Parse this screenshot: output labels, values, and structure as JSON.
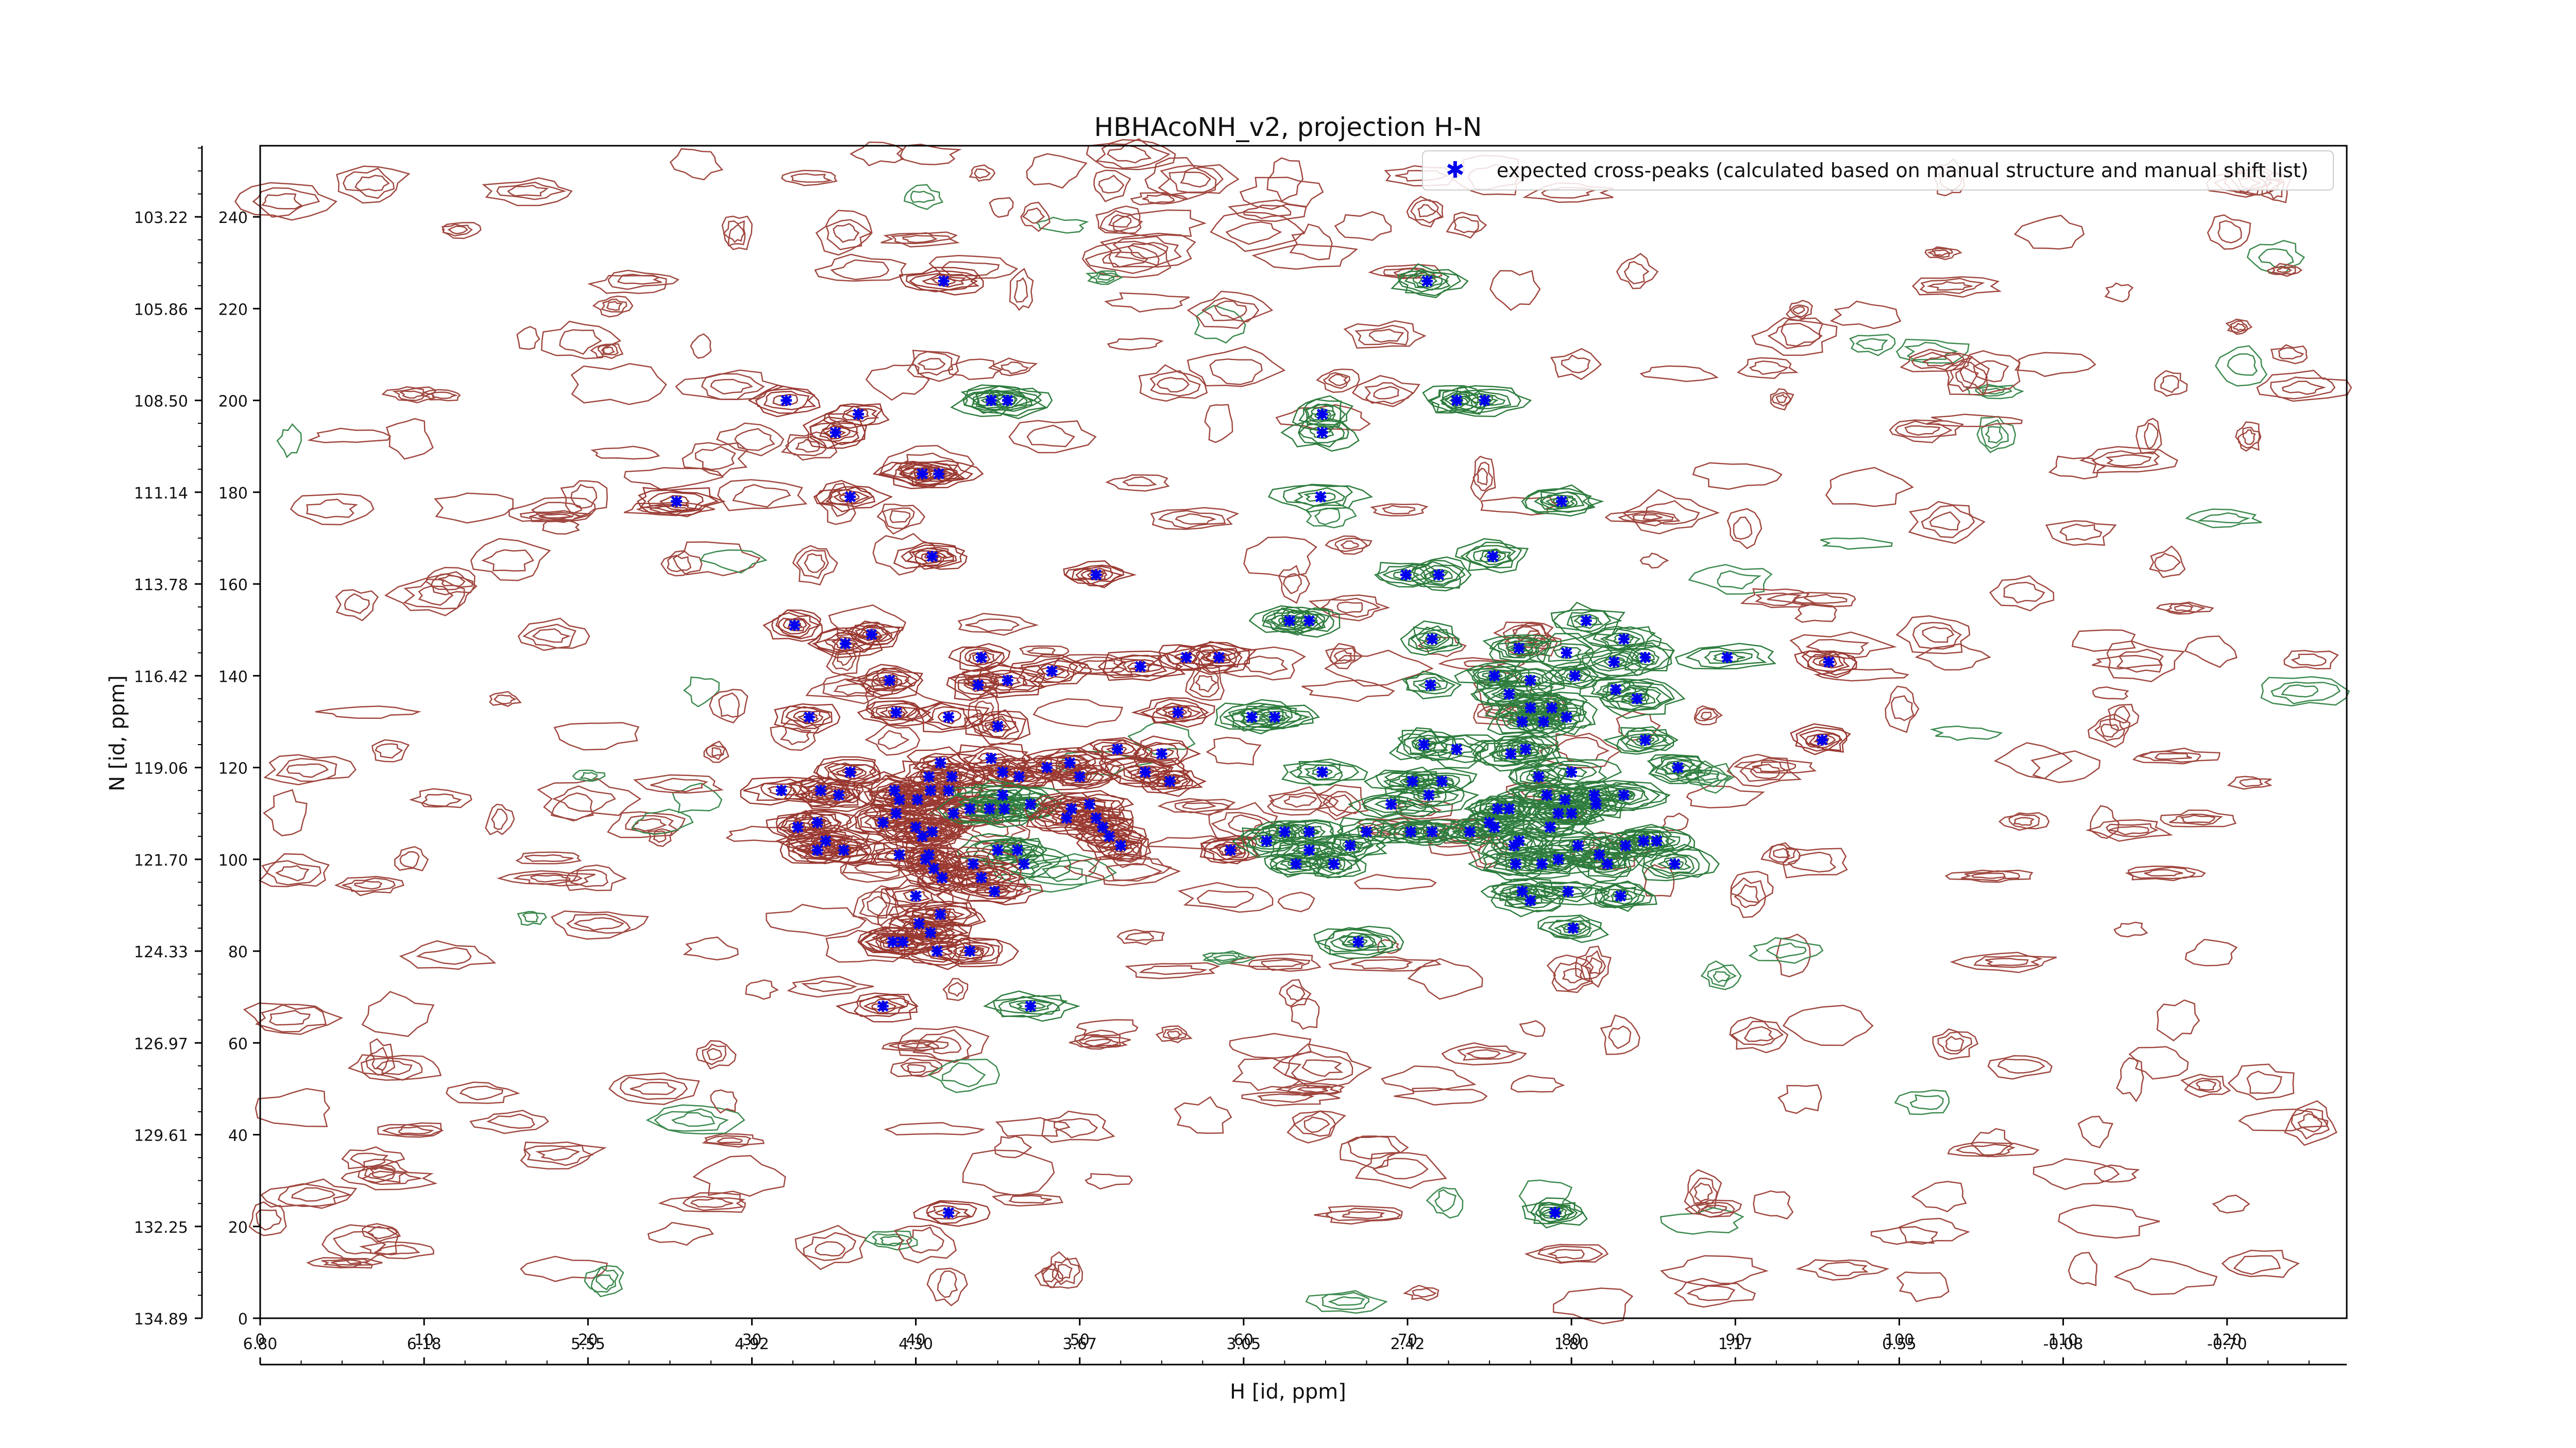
{
  "chart_data": {
    "type": "scatter",
    "title": "HBHAcoNH_v2, projection H-N",
    "xlabel": "H [id, ppm]",
    "ylabel": "N [id, ppm]",
    "x_index_ticks": [
      "0",
      "10",
      "20",
      "30",
      "40",
      "50",
      "60",
      "70",
      "80",
      "90",
      "100",
      "110",
      "120"
    ],
    "x_ppm_ticks": [
      "6.80",
      "6.18",
      "5.55",
      "4.92",
      "4.30",
      "3.67",
      "3.05",
      "2.42",
      "1.80",
      "1.17",
      "0.55",
      "-0.08",
      "-0.70"
    ],
    "y_index_ticks": [
      "0",
      "20",
      "40",
      "60",
      "80",
      "100",
      "120",
      "140",
      "160",
      "180",
      "200",
      "220",
      "240"
    ],
    "y_ppm_ticks": [
      "134.89",
      "132.25",
      "129.61",
      "126.97",
      "124.33",
      "121.70",
      "119.06",
      "116.42",
      "113.78",
      "111.14",
      "108.50",
      "105.86",
      "103.22"
    ],
    "xlim": [
      0,
      127.3
    ],
    "ylim": [
      0,
      255.5
    ],
    "grid": false,
    "legend_position": "top-right",
    "series": [
      {
        "name": "expected cross-peaks (calculated based on manual structure and manual shift list)",
        "marker": "x",
        "color": "#0000ee",
        "points": [
          [
            41.7,
            226
          ],
          [
            71.2,
            226
          ],
          [
            32.1,
            200
          ],
          [
            44.6,
            200
          ],
          [
            45.6,
            200
          ],
          [
            73.0,
            200
          ],
          [
            74.7,
            200
          ],
          [
            36.5,
            197
          ],
          [
            35.1,
            193
          ],
          [
            64.8,
            197
          ],
          [
            64.8,
            193
          ],
          [
            25.4,
            178
          ],
          [
            36.0,
            179
          ],
          [
            40.4,
            184
          ],
          [
            41.4,
            184
          ],
          [
            64.7,
            179
          ],
          [
            79.4,
            178
          ],
          [
            41.0,
            166
          ],
          [
            51.0,
            162
          ],
          [
            69.9,
            162
          ],
          [
            71.9,
            162
          ],
          [
            75.2,
            166
          ],
          [
            32.6,
            151
          ],
          [
            37.3,
            149
          ],
          [
            62.8,
            152
          ],
          [
            64.0,
            152
          ],
          [
            71.5,
            148
          ],
          [
            89.5,
            144
          ],
          [
            80.9,
            152
          ],
          [
            83.2,
            148
          ],
          [
            95.7,
            143
          ],
          [
            35.7,
            147
          ],
          [
            38.4,
            139
          ],
          [
            44.0,
            144
          ],
          [
            43.8,
            138
          ],
          [
            45.6,
            139
          ],
          [
            48.3,
            141
          ],
          [
            53.7,
            142
          ],
          [
            56.5,
            144
          ],
          [
            58.5,
            144
          ],
          [
            33.5,
            131
          ],
          [
            38.8,
            132
          ],
          [
            42.0,
            131
          ],
          [
            45.0,
            129
          ],
          [
            56.0,
            132
          ],
          [
            60.5,
            131
          ],
          [
            61.9,
            131
          ],
          [
            76.8,
            146
          ],
          [
            79.7,
            145
          ],
          [
            82.6,
            143
          ],
          [
            84.5,
            144
          ],
          [
            71.4,
            138
          ],
          [
            75.3,
            140
          ],
          [
            77.5,
            139
          ],
          [
            80.2,
            140
          ],
          [
            76.2,
            136
          ],
          [
            77.5,
            133
          ],
          [
            78.8,
            133
          ],
          [
            79.7,
            131
          ],
          [
            77.0,
            130
          ],
          [
            78.3,
            130
          ],
          [
            82.7,
            137
          ],
          [
            84.0,
            135
          ],
          [
            84.5,
            126
          ],
          [
            95.3,
            126
          ],
          [
            71.0,
            125
          ],
          [
            73.0,
            124
          ],
          [
            76.3,
            123
          ],
          [
            77.2,
            124
          ],
          [
            52.3,
            124
          ],
          [
            55.0,
            123
          ],
          [
            54.0,
            119
          ],
          [
            41.5,
            121
          ],
          [
            44.6,
            122
          ],
          [
            40.8,
            118
          ],
          [
            42.2,
            118
          ],
          [
            45.3,
            119
          ],
          [
            46.3,
            118
          ],
          [
            48.0,
            120
          ],
          [
            49.4,
            121
          ],
          [
            50.0,
            118
          ],
          [
            55.5,
            117
          ],
          [
            36.0,
            119
          ],
          [
            64.8,
            119
          ],
          [
            70.3,
            117
          ],
          [
            72.1,
            117
          ],
          [
            78.0,
            118
          ],
          [
            80.0,
            119
          ],
          [
            86.5,
            120
          ],
          [
            83.2,
            114
          ],
          [
            78.5,
            114
          ],
          [
            79.6,
            113
          ],
          [
            81.4,
            114
          ],
          [
            80.0,
            110
          ],
          [
            79.2,
            110
          ],
          [
            81.5,
            112
          ],
          [
            76.2,
            111
          ],
          [
            75.5,
            111
          ],
          [
            75.0,
            108
          ],
          [
            75.3,
            107
          ],
          [
            78.7,
            107
          ],
          [
            71.3,
            114
          ],
          [
            69.0,
            112
          ],
          [
            70.2,
            106
          ],
          [
            71.5,
            106
          ],
          [
            73.8,
            106
          ],
          [
            76.5,
            103
          ],
          [
            31.8,
            115
          ],
          [
            34.2,
            115
          ],
          [
            35.3,
            114
          ],
          [
            32.8,
            107
          ],
          [
            34.0,
            108
          ],
          [
            34.5,
            104
          ],
          [
            34.0,
            102
          ],
          [
            35.6,
            102
          ],
          [
            38.7,
            115
          ],
          [
            39.0,
            113
          ],
          [
            40.1,
            113
          ],
          [
            40.9,
            115
          ],
          [
            42.0,
            115
          ],
          [
            38.0,
            108
          ],
          [
            38.8,
            110
          ],
          [
            40.0,
            107
          ],
          [
            41.0,
            106
          ],
          [
            42.3,
            110
          ],
          [
            43.3,
            111
          ],
          [
            44.5,
            111
          ],
          [
            45.3,
            114
          ],
          [
            45.4,
            111
          ],
          [
            47.0,
            112
          ],
          [
            49.2,
            109
          ],
          [
            49.5,
            111
          ],
          [
            50.6,
            112
          ],
          [
            51.0,
            109
          ],
          [
            51.4,
            107
          ],
          [
            51.8,
            105
          ],
          [
            52.5,
            103
          ],
          [
            40.4,
            105
          ],
          [
            40.8,
            101
          ],
          [
            39.0,
            101
          ],
          [
            40.6,
            100
          ],
          [
            41.1,
            98
          ],
          [
            41.6,
            96
          ],
          [
            45.0,
            102
          ],
          [
            46.2,
            102
          ],
          [
            46.6,
            99
          ],
          [
            43.5,
            99
          ],
          [
            44.0,
            96
          ],
          [
            44.8,
            93
          ],
          [
            59.2,
            102
          ],
          [
            61.4,
            104
          ],
          [
            62.5,
            106
          ],
          [
            64.0,
            106
          ],
          [
            64.0,
            102
          ],
          [
            63.2,
            99
          ],
          [
            65.5,
            99
          ],
          [
            66.5,
            103
          ],
          [
            67.5,
            106
          ],
          [
            76.8,
            104
          ],
          [
            76.6,
            99
          ],
          [
            78.2,
            99
          ],
          [
            79.2,
            100
          ],
          [
            80.4,
            103
          ],
          [
            81.7,
            101
          ],
          [
            82.2,
            99
          ],
          [
            83.3,
            103
          ],
          [
            84.4,
            104
          ],
          [
            85.2,
            104
          ],
          [
            86.3,
            99
          ],
          [
            77.0,
            93
          ],
          [
            77.5,
            91
          ],
          [
            79.8,
            93
          ],
          [
            83.0,
            92
          ],
          [
            80.1,
            85
          ],
          [
            40.0,
            92
          ],
          [
            40.2,
            86
          ],
          [
            40.9,
            84
          ],
          [
            41.5,
            88
          ],
          [
            38.6,
            82
          ],
          [
            39.2,
            82
          ],
          [
            41.3,
            80
          ],
          [
            43.3,
            80
          ],
          [
            67.0,
            82
          ],
          [
            38.0,
            68
          ],
          [
            47.0,
            68
          ],
          [
            42.0,
            23
          ],
          [
            79.0,
            23
          ]
        ]
      }
    ]
  }
}
